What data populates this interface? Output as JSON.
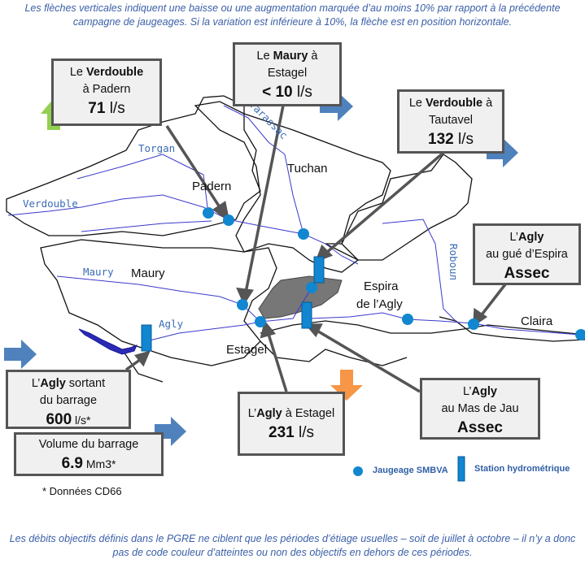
{
  "header_note": "Les flèches verticales indiquent une baisse ou une augmentation marquée d’au moins 10% par rapport à la précédente campagne de jaugeages. Si la variation est inférieure à 10%, la flèche est en position horizontale.",
  "footer_note": "Les débits objectifs définis dans le PGRE ne ciblent que les périodes d’étiage usuelles – soit de juillet à octobre – il n’y a donc pas de code couleur d’atteintes ou non des objectifs en dehors de ces périodes.",
  "stations": {
    "verdouble_padern": {
      "prefix": "Le ",
      "river": "Verdouble",
      "place": "à Padern",
      "value": "71",
      "unit": " l/s",
      "trend": "up"
    },
    "maury_estagel": {
      "prefix": "Le ",
      "river": "Maury",
      "suffix": " à",
      "place": "Estagel",
      "value": "< 10",
      "unit": " l/s",
      "trend": "stable"
    },
    "verdouble_tautavel": {
      "prefix": "Le ",
      "river": "Verdouble",
      "suffix": " à",
      "place": "Tautavel",
      "value": "132",
      "unit": " l/s",
      "trend": "stable"
    },
    "agly_espira": {
      "prefix": "L’",
      "river": "Agly",
      "place": "au gué d’Espira",
      "value": "Assec"
    },
    "agly_sortant": {
      "prefix": "L’",
      "river": "Agly",
      "suffix": "  sortant",
      "place": "du barrage",
      "value": "600",
      "unit": " l/s*",
      "trend": "stable"
    },
    "volume_barrage": {
      "label": "Volume  du barrage",
      "value": "6.9",
      "unit": " Mm3*",
      "trend": "stable"
    },
    "agly_estagel": {
      "prefix": "L’",
      "river": "Agly",
      "suffix": " à Estagel",
      "value": "231",
      "unit": " l/s",
      "trend": "down"
    },
    "agly_mas_de_jau": {
      "prefix": "L’",
      "river": "Agly",
      "place": "au Mas de Jau",
      "value": "Assec"
    }
  },
  "places": [
    "Padern",
    "Tuchan",
    "Maury",
    "Estagel",
    "Espira",
    "de l’Agly",
    "Claira"
  ],
  "rivers": [
    "Torgan",
    "Verdouble",
    "Tarassac",
    "Maury",
    "Agly",
    "Robouл"
  ],
  "legend": {
    "gauging": "Jaugeage SMBVA",
    "station": "Station hydrométrique"
  },
  "source_note": "* Données CD66",
  "colors": {
    "up": "#92d050",
    "stable": "#4f81bd",
    "down": "#f79646",
    "dot": "#1087d0",
    "river": "#3a3acc"
  }
}
